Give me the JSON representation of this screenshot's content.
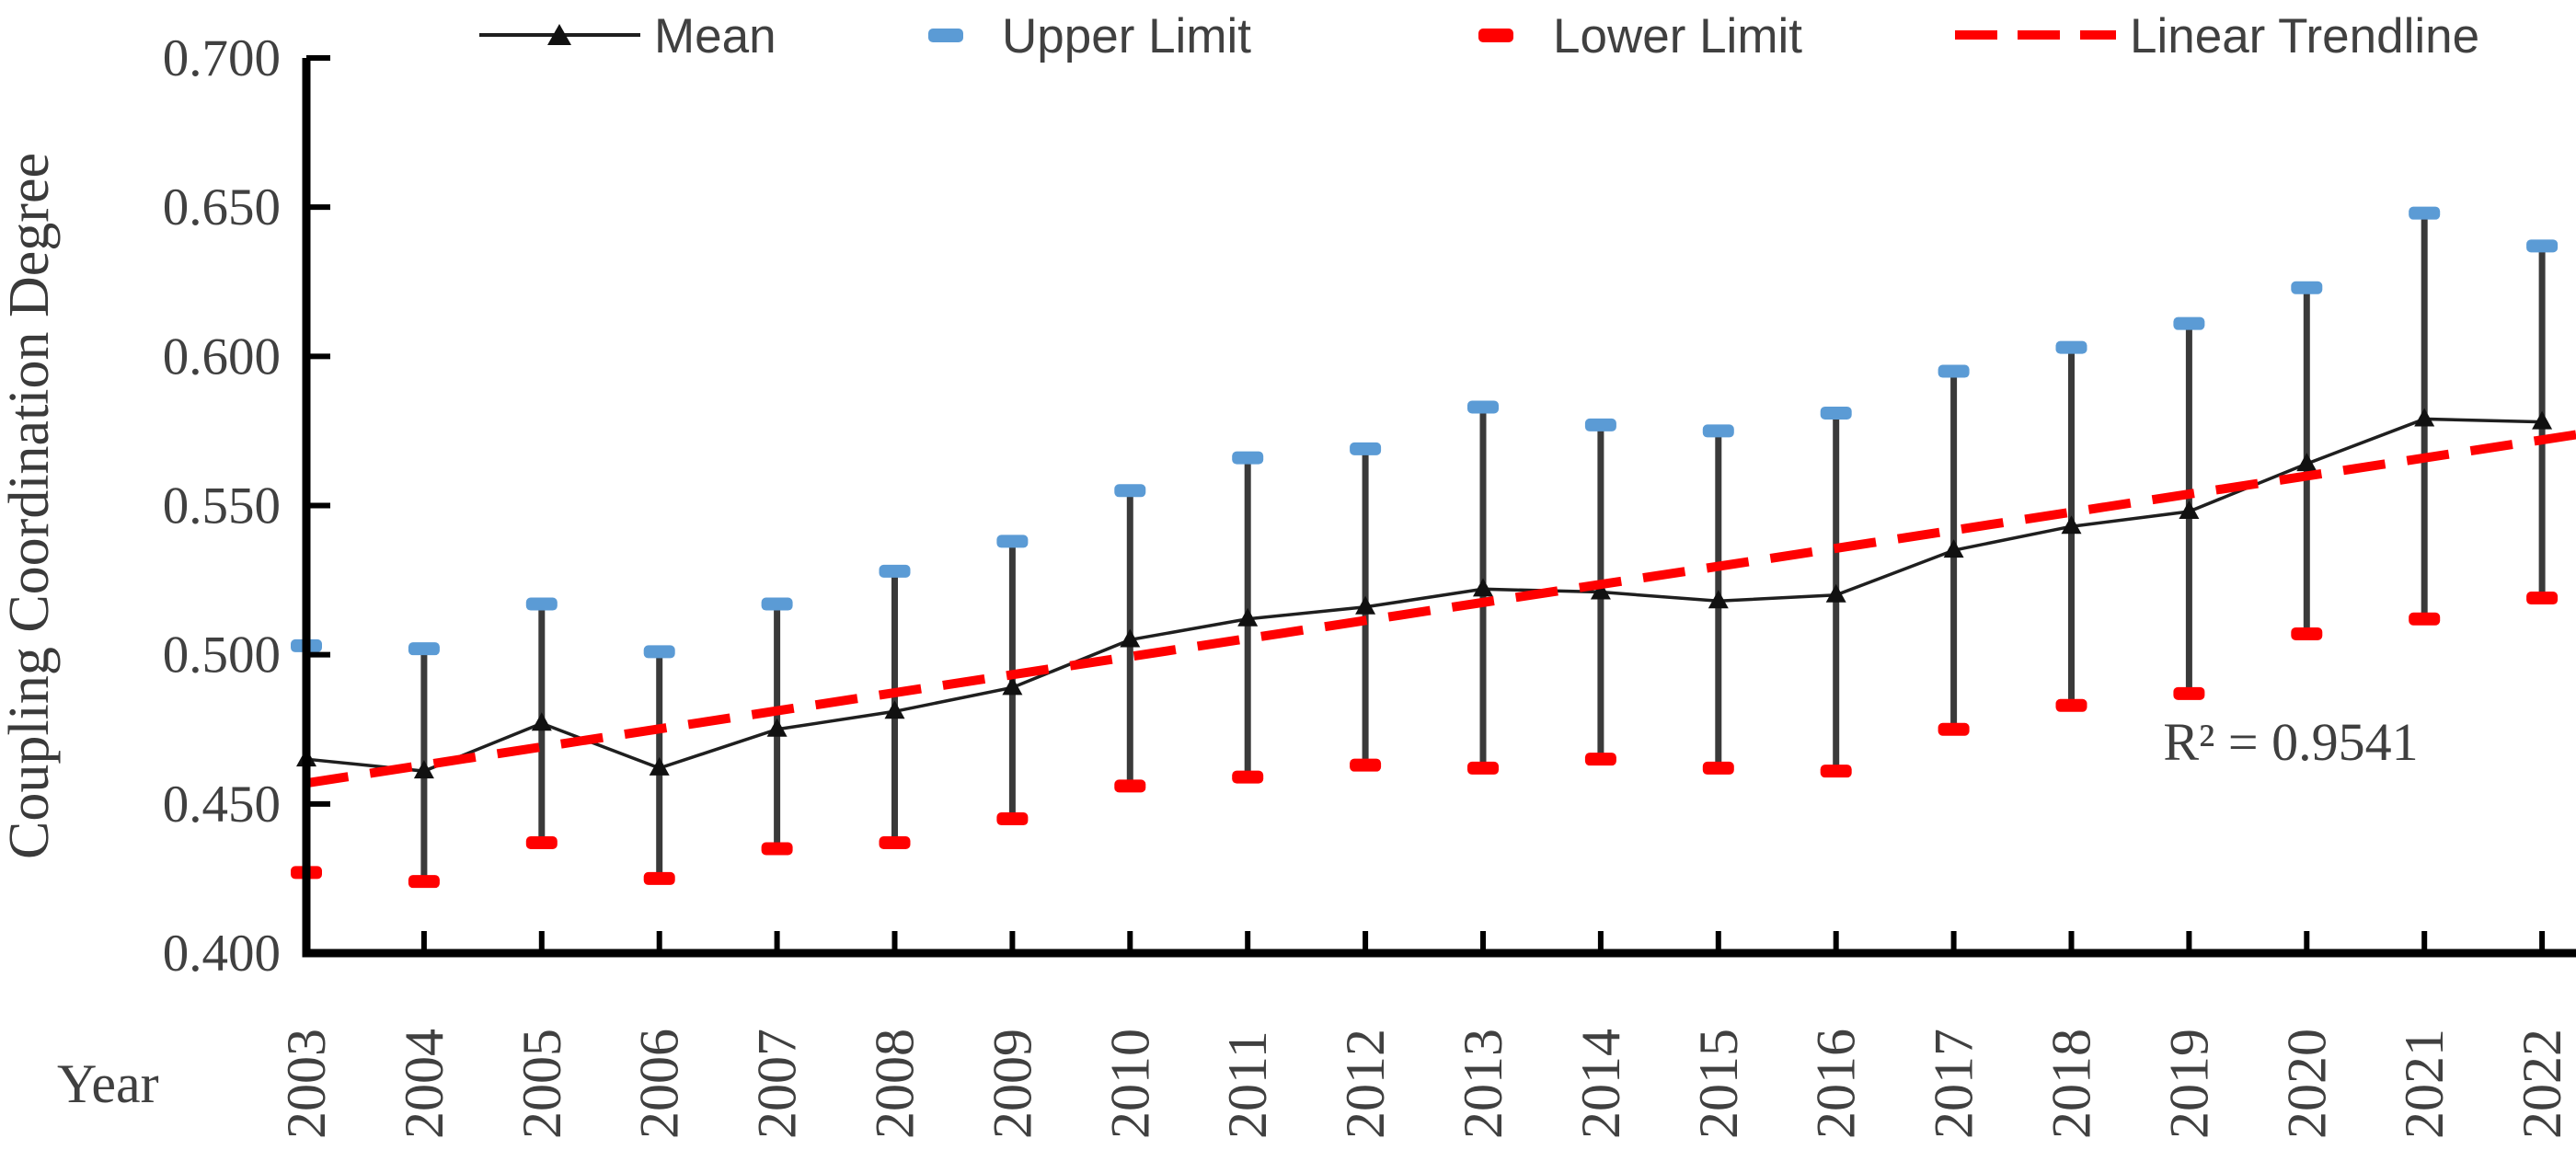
{
  "y_axis": {
    "title": "Coupling Coordination Degree",
    "tick_labels": [
      "0.700",
      "0.650",
      "0.600",
      "0.550",
      "0.500",
      "0.450",
      "0.400"
    ],
    "min": 0.4,
    "max": 0.7,
    "tick_step": 0.05
  },
  "x_axis": {
    "title": "Year",
    "tick_labels": [
      "2003",
      "2004",
      "2005",
      "2006",
      "2007",
      "2008",
      "2009",
      "2010",
      "2011",
      "2012",
      "2013",
      "2014",
      "2015",
      "2016",
      "2017",
      "2018",
      "2019",
      "2020",
      "2021",
      "2022"
    ]
  },
  "legend": {
    "items": [
      {
        "label": "Mean",
        "swatch": "black-line-triangle-marker"
      },
      {
        "label": "Upper Limit",
        "swatch": "blue-dash"
      },
      {
        "label": "Lower Limit",
        "swatch": "red-dash"
      },
      {
        "label": "Linear Trendline",
        "swatch": "red-dashed-line"
      }
    ]
  },
  "annotation": {
    "r_squared_label": "R² = 0.9541"
  },
  "colors": {
    "upper_limit": "#5B9BD5",
    "lower_limit": "#FF0000",
    "trendline": "#FF0000",
    "mean_line": "#1f1f1f",
    "error_stem": "#3a3a3a",
    "axis": "#000000",
    "text": "#404040"
  },
  "chart_data": {
    "type": "line",
    "title": "",
    "xlabel": "Year",
    "ylabel": "Coupling Coordination Degree",
    "ylim": [
      0.4,
      0.7
    ],
    "ytick_step": 0.05,
    "grid": false,
    "legend_position": "top",
    "x": [
      2003,
      2004,
      2005,
      2006,
      2007,
      2008,
      2009,
      2010,
      2011,
      2012,
      2013,
      2014,
      2015,
      2016,
      2017,
      2018,
      2019,
      2020,
      2021,
      2022
    ],
    "series": [
      {
        "name": "Mean",
        "marker": "triangle",
        "color": "#1f1f1f",
        "values": [
          0.465,
          0.461,
          0.477,
          0.462,
          0.475,
          0.481,
          0.489,
          0.505,
          0.512,
          0.516,
          0.522,
          0.521,
          0.518,
          0.52,
          0.535,
          0.543,
          0.548,
          0.564,
          0.579,
          0.578
        ]
      },
      {
        "name": "Upper Limit",
        "marker": "dash-cap",
        "color": "#5B9BD5",
        "values": [
          0.503,
          0.502,
          0.517,
          0.501,
          0.517,
          0.528,
          0.538,
          0.555,
          0.566,
          0.569,
          0.583,
          0.577,
          0.575,
          0.581,
          0.595,
          0.603,
          0.611,
          0.623,
          0.648,
          0.637
        ]
      },
      {
        "name": "Lower Limit",
        "marker": "dash-cap",
        "color": "#FF0000",
        "values": [
          0.427,
          0.424,
          0.437,
          0.425,
          0.435,
          0.437,
          0.445,
          0.456,
          0.459,
          0.463,
          0.462,
          0.465,
          0.462,
          0.461,
          0.475,
          0.483,
          0.487,
          0.507,
          0.512,
          0.519
        ]
      }
    ],
    "trendline": {
      "name": "Linear Trendline",
      "color": "#FF0000",
      "style": "dashed",
      "start_value_2003": 0.457,
      "end_value_2022": 0.572,
      "r_squared": 0.9541
    }
  }
}
